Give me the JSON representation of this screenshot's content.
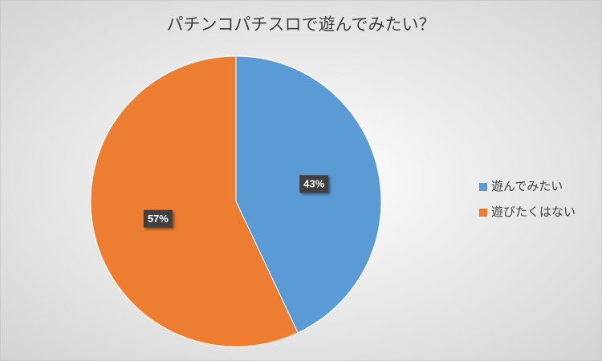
{
  "chart_data": {
    "type": "pie",
    "title": "パチンコパチスロで遊んでみたい？",
    "categories": [
      "遊んでみたい",
      "遊びたくはない"
    ],
    "values": [
      43,
      57
    ],
    "value_labels": [
      "43%",
      "57%"
    ],
    "colors": [
      "#5b9bd5",
      "#ed7d31"
    ],
    "legend": "right"
  }
}
